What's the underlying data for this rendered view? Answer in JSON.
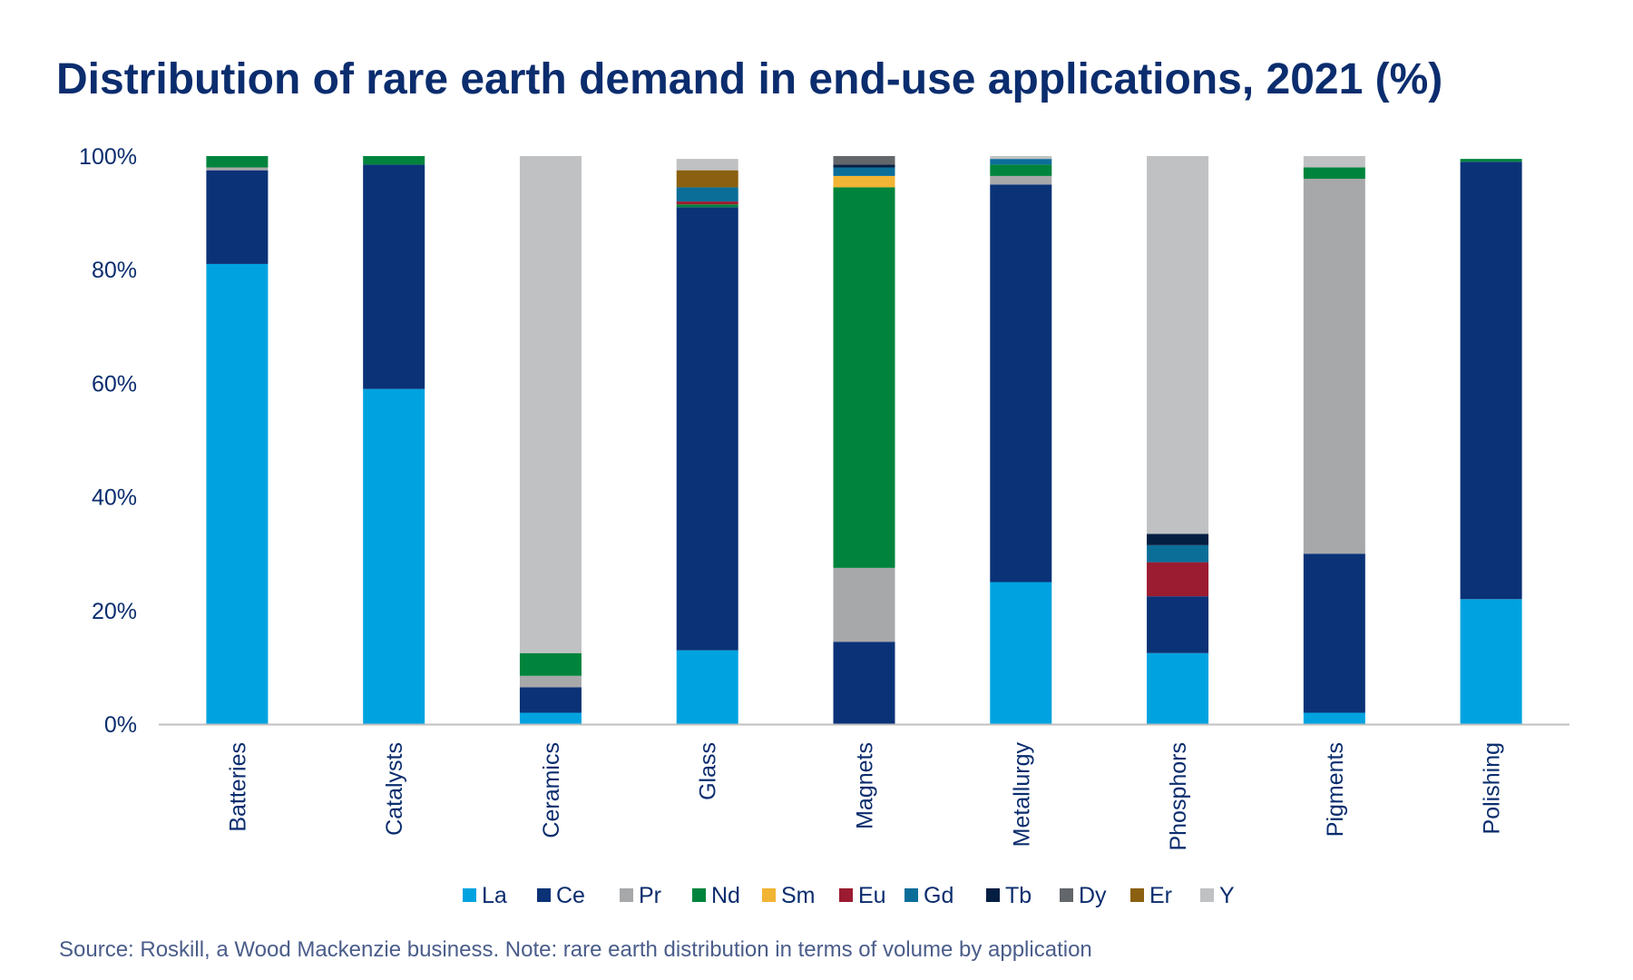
{
  "chart_data": {
    "type": "bar",
    "stacked": true,
    "title": "Distribution of rare earth demand in end-use applications, 2021 (%)",
    "source_note": "Source: Roskill, a Wood Mackenzie business. Note: rare earth distribution in terms of volume by application",
    "categories": [
      "Batteries",
      "Catalysts",
      "Ceramics",
      "Glass",
      "Magnets",
      "Metallurgy",
      "Phosphors",
      "Pigments",
      "Polishing"
    ],
    "ylim": [
      0,
      100
    ],
    "yticks": [
      "0%",
      "20%",
      "40%",
      "60%",
      "80%",
      "100%"
    ],
    "grid": false,
    "legend_position": "bottom",
    "series": [
      {
        "name": "La",
        "color": "#00a3e0",
        "values": [
          81,
          59,
          2,
          13,
          0,
          25,
          12.5,
          2,
          22
        ]
      },
      {
        "name": "Ce",
        "color": "#0b3277",
        "values": [
          16.5,
          39.5,
          4.5,
          78,
          14.5,
          70,
          10,
          28,
          77
        ]
      },
      {
        "name": "Pr",
        "color": "#a7a8aa",
        "values": [
          0.5,
          0,
          2,
          0,
          13,
          1.5,
          0,
          66,
          0
        ]
      },
      {
        "name": "Nd",
        "color": "#00843d",
        "values": [
          2,
          1.5,
          4,
          0.5,
          67,
          2,
          0,
          2,
          0.5
        ]
      },
      {
        "name": "Sm",
        "color": "#f1b434",
        "values": [
          0,
          0,
          0,
          0,
          2,
          0,
          0,
          0,
          0
        ]
      },
      {
        "name": "Eu",
        "color": "#9b1b30",
        "values": [
          0,
          0,
          0,
          0.5,
          0,
          0,
          6,
          0,
          0
        ]
      },
      {
        "name": "Gd",
        "color": "#0b6e99",
        "values": [
          0,
          0,
          0,
          2.5,
          1.5,
          1,
          3,
          0,
          0
        ]
      },
      {
        "name": "Tb",
        "color": "#041e42",
        "values": [
          0,
          0,
          0,
          0,
          0.5,
          0,
          2,
          0,
          0
        ]
      },
      {
        "name": "Dy",
        "color": "#63666a",
        "values": [
          0,
          0,
          0,
          0,
          1.5,
          0,
          0,
          0,
          0
        ]
      },
      {
        "name": "Er",
        "color": "#8b6010",
        "values": [
          0,
          0,
          0,
          3,
          0,
          0,
          0,
          0,
          0
        ]
      },
      {
        "name": "Y",
        "color": "#bfc1c3",
        "values": [
          0,
          0,
          87.5,
          2,
          0,
          0.5,
          66.5,
          2,
          0
        ]
      }
    ]
  },
  "colors": {
    "title": "#0b2d6e",
    "axis_text": "#0b2d6e",
    "source_text": "#4a5d8a",
    "axis_line": "#bfbfbf"
  }
}
